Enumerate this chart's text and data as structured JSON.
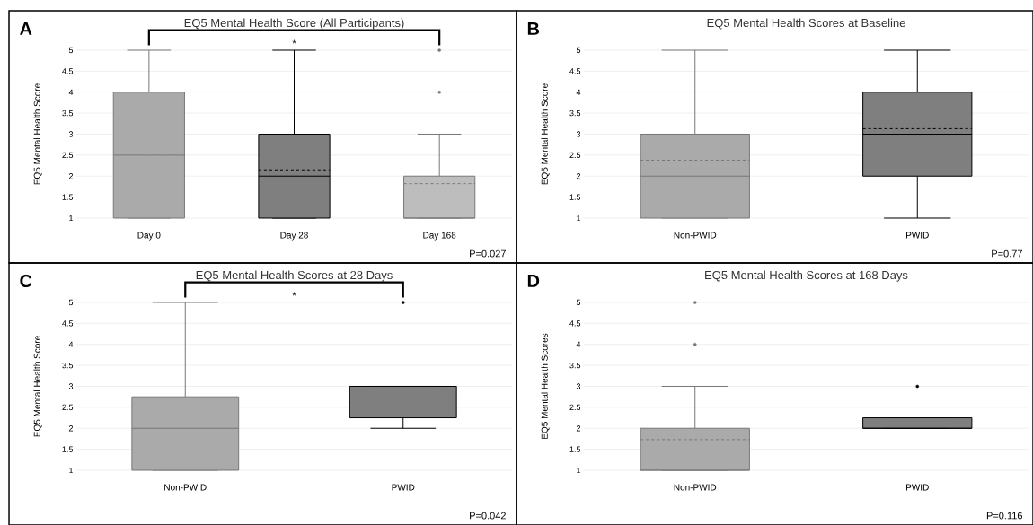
{
  "chart_data": [
    {
      "type": "box",
      "title": "EQ5 Mental Health Score (All Participants)",
      "ylabel": "EQ5 Mental Health Score",
      "categories": [
        "Day 0",
        "Day 28",
        "Day 168"
      ],
      "colors": [
        "#aaaaaa",
        "#7f7f7f",
        "#bdbdbd"
      ],
      "boxes": [
        {
          "low": 1,
          "q1": 1,
          "median": 2.5,
          "q3": 4,
          "high": 5,
          "mean": 2.55
        },
        {
          "low": 1,
          "q1": 1,
          "median": 2,
          "q3": 3,
          "high": 5,
          "mean": 2.15
        },
        {
          "low": 1,
          "q1": 1,
          "median": 1,
          "q3": 2,
          "high": 3,
          "mean": 1.82,
          "outliers": [
            4,
            5
          ]
        }
      ],
      "ylim": [
        1,
        5
      ],
      "yticks": [
        1,
        1.5,
        2,
        2.5,
        3,
        3.5,
        4,
        4.5,
        5
      ],
      "grid": "y",
      "annotations": [
        "A",
        "*",
        "P=0.027"
      ]
    },
    {
      "type": "box",
      "title": "EQ5 Mental Health Scores at Baseline",
      "ylabel": "EQ5 Mental Health Score",
      "categories": [
        "Non-PWID",
        "PWID"
      ],
      "colors": [
        "#aaaaaa",
        "#7f7f7f"
      ],
      "boxes": [
        {
          "low": 1,
          "q1": 1,
          "median": 2,
          "q3": 3,
          "high": 5,
          "mean": 2.38
        },
        {
          "low": 1,
          "q1": 2,
          "median": 3,
          "q3": 4,
          "high": 5,
          "mean": 3.13
        }
      ],
      "ylim": [
        1,
        5
      ],
      "yticks": [
        1,
        1.5,
        2,
        2.5,
        3,
        3.5,
        4,
        4.5,
        5
      ],
      "grid": "y",
      "annotations": [
        "B",
        "P=0.77"
      ]
    },
    {
      "type": "box",
      "title": "EQ5 Mental Health Scores at 28 Days",
      "ylabel": "EQ5 Mental Health Score",
      "categories": [
        "Non-PWID",
        "PWID"
      ],
      "colors": [
        "#aaaaaa",
        "#7f7f7f"
      ],
      "boxes": [
        {
          "low": 1,
          "q1": 1,
          "median": 2,
          "q3": 2.75,
          "high": 5
        },
        {
          "low": 2,
          "q1": 2.25,
          "median": 3,
          "q3": 3,
          "high": 3,
          "outliers": [
            5
          ]
        }
      ],
      "ylim": [
        1,
        5
      ],
      "yticks": [
        1,
        1.5,
        2,
        2.5,
        3,
        3.5,
        4,
        4.5,
        5
      ],
      "grid": "y",
      "annotations": [
        "C",
        "*",
        "P=0.042"
      ]
    },
    {
      "type": "box",
      "title": "EQ5 Mental Health Scores at 168 Days",
      "ylabel": "EQ5 Mental Health Scores",
      "categories": [
        "Non-PWID",
        "PWID"
      ],
      "colors": [
        "#aaaaaa",
        "#7f7f7f"
      ],
      "boxes": [
        {
          "low": 1,
          "q1": 1,
          "median": 1,
          "q3": 2,
          "high": 3,
          "mean": 1.73,
          "outliers": [
            4,
            5
          ]
        },
        {
          "low": 2,
          "q1": 2,
          "median": 2,
          "q3": 2.25,
          "high": 2.25,
          "outliers": [
            3
          ]
        }
      ],
      "ylim": [
        1,
        5
      ],
      "yticks": [
        1,
        1.5,
        2,
        2.5,
        3,
        3.5,
        4,
        4.5,
        5
      ],
      "grid": "y",
      "annotations": [
        "D",
        "P=0.116"
      ]
    }
  ]
}
